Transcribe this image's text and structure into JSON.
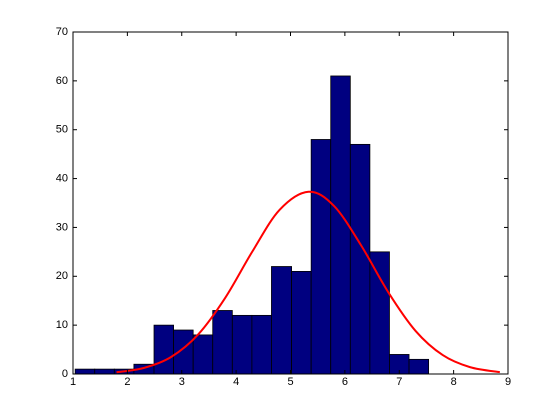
{
  "chart_data": {
    "type": "histogram",
    "bins": [
      1.04,
      1.4,
      1.76,
      2.12,
      2.49,
      2.85,
      3.21,
      3.57,
      3.93,
      4.29,
      4.65,
      5.02,
      5.38,
      5.74,
      6.1,
      6.46,
      6.82,
      7.18,
      7.54
    ],
    "counts": [
      1,
      1,
      1,
      2,
      10,
      9,
      8,
      13,
      12,
      12,
      22,
      21,
      48,
      61,
      47,
      25,
      4,
      3
    ],
    "color": "#000080",
    "fit": {
      "type": "line",
      "color": "#ff0000",
      "x": [
        1.8,
        2.3,
        2.8,
        3.3,
        3.8,
        4.3,
        4.8,
        5.33,
        5.8,
        6.3,
        6.8,
        7.3,
        7.8,
        8.3,
        8.85
      ],
      "values": [
        0.36,
        1.23,
        3.45,
        8.07,
        15.6,
        25.1,
        33.6,
        37.3,
        34.4,
        26.3,
        16.7,
        8.82,
        3.87,
        1.41,
        0.37
      ]
    },
    "xlim": [
      1,
      9
    ],
    "xticks": [
      1,
      2,
      3,
      4,
      5,
      6,
      7,
      8,
      9
    ],
    "ylim": [
      0,
      70
    ],
    "yticks": [
      0,
      10,
      20,
      30,
      40,
      50,
      60,
      70
    ],
    "grid": false
  }
}
